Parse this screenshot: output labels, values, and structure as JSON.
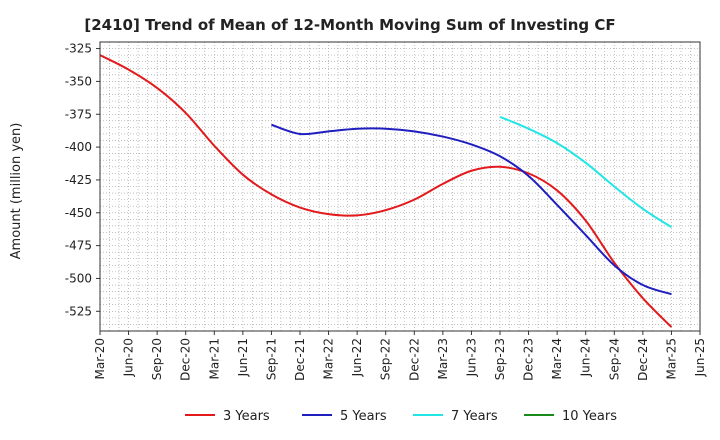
{
  "chart_data": {
    "type": "line",
    "title": "[2410]  Trend of Mean of 12-Month Moving Sum of Investing CF",
    "xlabel": "",
    "ylabel": "Amount (million yen)",
    "ylim": [
      -540,
      -320
    ],
    "yticks": [
      -325,
      -350,
      -375,
      -400,
      -425,
      -450,
      -475,
      -500,
      -525
    ],
    "categories": [
      "Mar-20",
      "Jun-20",
      "Sep-20",
      "Dec-20",
      "Mar-21",
      "Jun-21",
      "Sep-21",
      "Dec-21",
      "Mar-22",
      "Jun-22",
      "Sep-22",
      "Dec-22",
      "Mar-23",
      "Jun-23",
      "Sep-23",
      "Dec-23",
      "Mar-24",
      "Jun-24",
      "Sep-24",
      "Dec-24",
      "Mar-25",
      "Jun-25"
    ],
    "series": [
      {
        "name": "3 Years",
        "color": "#e31a1c",
        "values": [
          -330,
          -341,
          -355,
          -374,
          -399,
          -421,
          -436,
          -446,
          -451,
          -452,
          -448,
          -440,
          -428,
          -418,
          -415,
          -420,
          -433,
          -456,
          -488,
          -515,
          -537,
          null
        ]
      },
      {
        "name": "5 Years",
        "color": "#1f1fbf",
        "values": [
          null,
          null,
          null,
          null,
          null,
          null,
          -383,
          -390,
          -388,
          -386,
          -386,
          -388,
          -392,
          -398,
          -407,
          -422,
          -444,
          -467,
          -490,
          -505,
          -512,
          null
        ]
      },
      {
        "name": "7 Years",
        "color": "#22e5e5",
        "values": [
          null,
          null,
          null,
          null,
          null,
          null,
          null,
          null,
          null,
          null,
          null,
          null,
          null,
          null,
          -377,
          -386,
          -397,
          -412,
          -430,
          -447,
          -461,
          null
        ]
      },
      {
        "name": "10 Years",
        "color": "#1a8a1a",
        "values": [
          null,
          null,
          null,
          null,
          null,
          null,
          null,
          null,
          null,
          null,
          null,
          null,
          null,
          null,
          null,
          null,
          null,
          null,
          null,
          null,
          null,
          null
        ]
      }
    ],
    "grid": true,
    "legend_position": "bottom"
  }
}
